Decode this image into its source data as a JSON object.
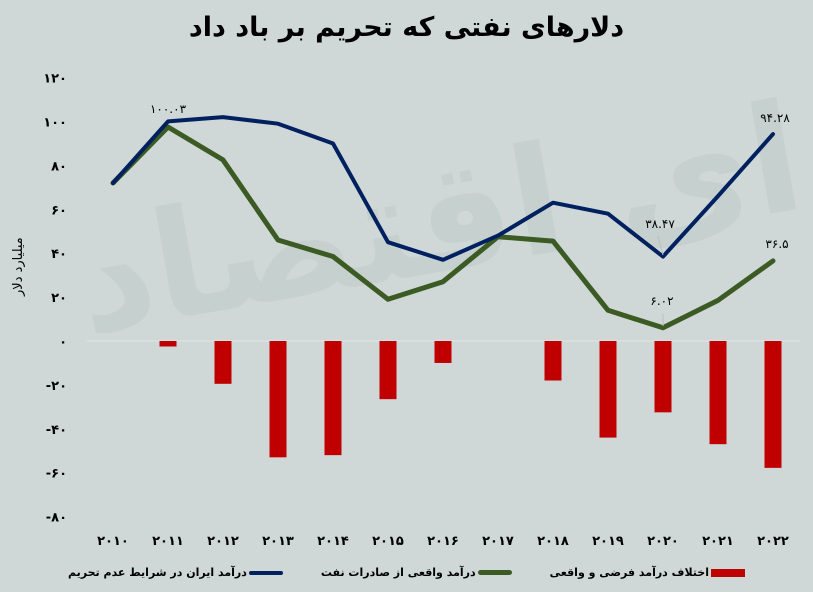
{
  "title": "دلارهای نفتی که تحریم بر باد داد",
  "watermark": "فردای اقتصاد",
  "y_axis_label": "میلیارد دلار",
  "y_ticks": [
    "۱۲۰",
    "۱۰۰",
    "۸۰",
    "۶۰",
    "۴۰",
    "۲۰",
    "۰",
    "-۲۰",
    "-۴۰",
    "-۶۰",
    "-۸۰"
  ],
  "x_ticks": [
    "۲۰۱۰",
    "۲۰۱۱",
    "۲۰۱۲",
    "۲۰۱۳",
    "۲۰۱۴",
    "۲۰۱۵",
    "۲۰۱۶",
    "۲۰۱۷",
    "۲۰۱۸",
    "۲۰۱۹",
    "۲۰۲۰",
    "۲۰۲۱",
    "۲۰۲۲"
  ],
  "data_labels": {
    "blue_2011": "۱۰۰.۰۳",
    "blue_2020": "۳۸.۴۷",
    "blue_2022": "۹۴.۲۸",
    "green_2020": "۶.۰۲",
    "green_2022": "۳۶.۵"
  },
  "legend": [
    {
      "label": "اختلاف درآمد فرضی و واقعی",
      "color": "#c00000",
      "kind": "bar"
    },
    {
      "label": "درآمد واقعی از صادرات نفت",
      "color": "#3b5a24",
      "kind": "line"
    },
    {
      "label": "درآمد ایران در شرایط عدم تحریم",
      "color": "#002060",
      "kind": "line"
    }
  ],
  "colors": {
    "background": "#cfd8d7",
    "bar": "#c00000",
    "real_revenue": "#3b5a24",
    "no_sanction_revenue": "#002060",
    "zero_line": "#e3e6e6"
  },
  "chart_data": {
    "type": "bar+line",
    "title": "دلارهای نفتی که تحریم بر باد داد",
    "xlabel": "",
    "ylabel": "میلیارد دلار",
    "ylim": [
      -80,
      120
    ],
    "yticks": [
      120,
      100,
      80,
      60,
      40,
      20,
      0,
      -20,
      -40,
      -60,
      -80
    ],
    "grid": false,
    "legend_position": "bottom",
    "categories": [
      "2010",
      "2011",
      "2012",
      "2013",
      "2014",
      "2015",
      "2016",
      "2017",
      "2018",
      "2019",
      "2020",
      "2021",
      "2022"
    ],
    "series": [
      {
        "name": "درآمد ایران در شرایط عدم تحریم",
        "type": "line",
        "color": "#002060",
        "values": [
          72,
          100.03,
          102,
          99,
          90,
          45,
          37,
          48,
          63,
          58,
          38.47,
          66,
          94.28
        ]
      },
      {
        "name": "درآمد واقعی از صادرات نفت",
        "type": "line",
        "color": "#3b5a24",
        "values": [
          72,
          97.5,
          82.5,
          46,
          38.5,
          19,
          27,
          47.5,
          45.5,
          14,
          6.02,
          18.5,
          36.5
        ]
      },
      {
        "name": "اختلاف درآمد فرضی و واقعی",
        "type": "bar",
        "color": "#c00000",
        "values": [
          0,
          -2.5,
          -19.5,
          -53,
          -52,
          -26.5,
          -10,
          0,
          -18,
          -44,
          -32.5,
          -47,
          -57.8
        ]
      }
    ],
    "annotations": [
      {
        "series": "درآمد ایران در شرایط عدم تحریم",
        "x": "2011",
        "text": "100.03"
      },
      {
        "series": "درآمد ایران در شرایط عدم تحریم",
        "x": "2020",
        "text": "38.47"
      },
      {
        "series": "درآمد ایران در شرایط عدم تحریم",
        "x": "2022",
        "text": "94.28"
      },
      {
        "series": "درآمد واقعی از صادرات نفت",
        "x": "2020",
        "text": "6.02"
      },
      {
        "series": "درآمد واقعی از صادرات نفت",
        "x": "2022",
        "text": "36.5"
      }
    ]
  }
}
